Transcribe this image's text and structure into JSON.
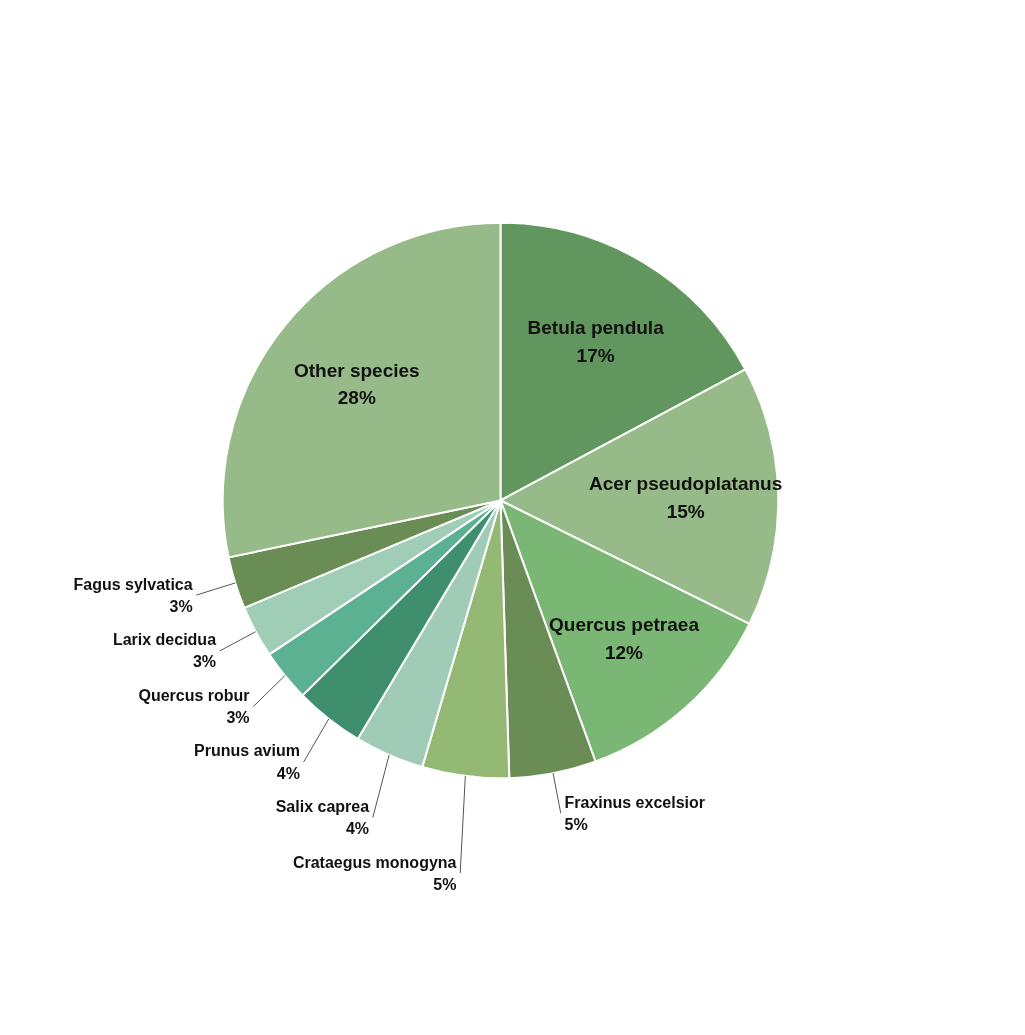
{
  "chart_data": {
    "type": "pie",
    "categories": [
      "Betula pendula",
      "Acer pseudoplatanus",
      "Quercus petraea",
      "Fraxinus excelsior",
      "Crataegus monogyna",
      "Salix caprea",
      "Prunus avium",
      "Quercus robur",
      "Larix decidua",
      "Fagus sylvatica",
      "Other species"
    ],
    "values": [
      17,
      15,
      12,
      5,
      5,
      4,
      4,
      3,
      3,
      3,
      28
    ],
    "value_labels": [
      "17%",
      "15%",
      "12%",
      "5%",
      "5%",
      "4%",
      "4%",
      "3%",
      "3%",
      "3%",
      "28%"
    ],
    "colors": [
      "#62965f",
      "#97bb88",
      "#7bb774",
      "#6a8c55",
      "#94b975",
      "#a0cbb6",
      "#3f8f6f",
      "#5cb193",
      "#a0cdb5",
      "#6a8c55",
      "#97bb88"
    ],
    "legend": false
  }
}
